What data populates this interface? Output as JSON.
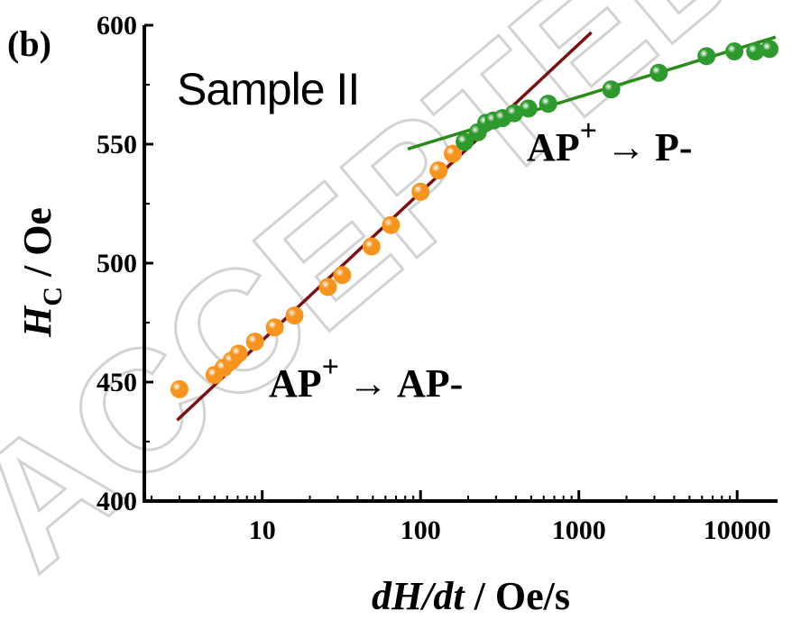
{
  "panel_label": "(b)",
  "sample_label": "Sample II",
  "annotations": {
    "upper": {
      "base": "AP",
      "sup": "+",
      "arrow": "→",
      "target": "P-"
    },
    "lower": {
      "base": "AP",
      "sup": "+",
      "arrow": "→",
      "target": "AP-"
    }
  },
  "watermark": "ACCEPTED MANUSCRIPT",
  "colors": {
    "orange": "#f7941d",
    "green": "#2e9a2e",
    "fit_red": "#7a1010",
    "fit_green": "#2a8a1a",
    "axis": "#000000"
  },
  "chart_data": {
    "type": "scatter",
    "xscale": "log",
    "xlim": [
      1.8,
      18000
    ],
    "ylim": [
      400,
      600
    ],
    "xticks": [
      10,
      100,
      1000,
      10000
    ],
    "xtick_labels": [
      "10",
      "100",
      "1000",
      "10000"
    ],
    "yticks": [
      400,
      450,
      500,
      550,
      600
    ],
    "ytick_labels": [
      "400",
      "450",
      "500",
      "550",
      "600"
    ],
    "xlabel": {
      "main": "dH/dt",
      "unit": " / Oe/s"
    },
    "ylabel": {
      "main": "H",
      "sub": "C",
      "unit": " / Oe"
    },
    "grid": false,
    "series": [
      {
        "color": "orange",
        "x": [
          3,
          5,
          5.7,
          6.4,
          7.1,
          9,
          12,
          16,
          26,
          32,
          49,
          65,
          100,
          130,
          160
        ],
        "y": [
          447,
          453,
          456,
          459,
          462,
          467,
          473,
          478,
          490,
          495,
          507,
          516,
          530,
          539,
          546
        ]
      },
      {
        "color": "green",
        "x": [
          190,
          230,
          260,
          290,
          330,
          390,
          480,
          640,
          1600,
          3200,
          6400,
          9600,
          13000,
          16000
        ],
        "y": [
          551,
          555,
          559,
          560,
          561,
          563,
          565,
          567,
          573,
          580,
          587,
          589,
          589,
          590
        ]
      }
    ],
    "fits": [
      {
        "color": "fit_red",
        "x": [
          2.9,
          1200
        ],
        "y": [
          434,
          597
        ]
      },
      {
        "color": "fit_green",
        "x": [
          83,
          17500
        ],
        "y": [
          548,
          595
        ]
      }
    ]
  }
}
